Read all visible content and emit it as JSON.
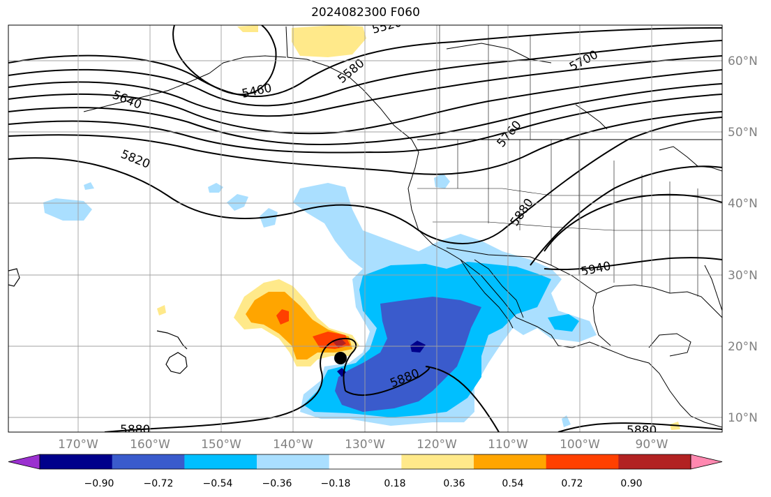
{
  "title": "2024082300 F060",
  "map": {
    "lon_ticks": [
      "170°W",
      "160°W",
      "150°W",
      "140°W",
      "130°W",
      "120°W",
      "110°W",
      "100°W",
      "90°W"
    ],
    "lat_ticks": [
      "60°N",
      "50°N",
      "40°N",
      "30°N",
      "20°N",
      "10°N"
    ],
    "contour_labels": [
      "5460",
      "5640",
      "5820",
      "5700",
      "5760",
      "5880",
      "5940",
      "5880",
      "5880",
      "5880",
      "5520",
      "5580"
    ],
    "storm_marker": "black-dot"
  },
  "colorbar": {
    "ticks": [
      "−0.90",
      "−0.72",
      "−0.54",
      "−0.36",
      "−0.18",
      "0.18",
      "0.36",
      "0.54",
      "0.72",
      "0.90"
    ],
    "colors": [
      "#9b30d0",
      "#00008b",
      "#3a5bcc",
      "#00bfff",
      "#aadfff",
      "#ffffff",
      "#ffe98a",
      "#ffa500",
      "#ff4000",
      "#b22222",
      "#ff88b0"
    ]
  }
}
